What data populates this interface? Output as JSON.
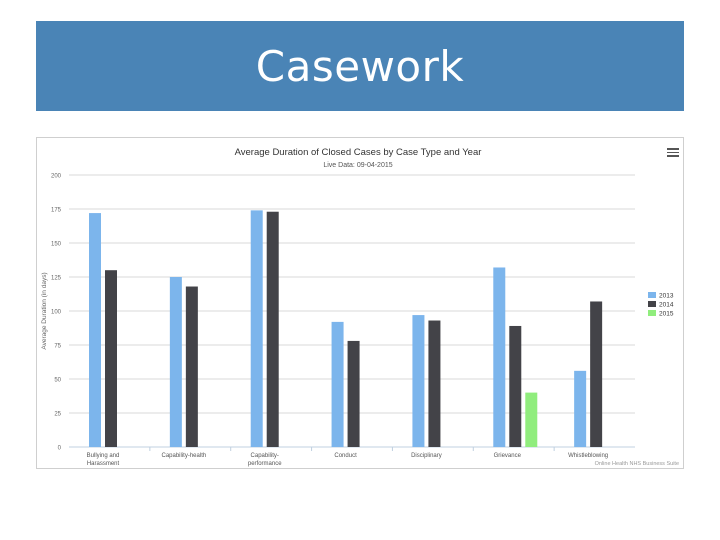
{
  "slide": {
    "title": "Casework"
  },
  "chart_data": {
    "type": "bar",
    "title": "Average Duration of Closed Cases by Case Type and Year",
    "subtitle": "Live Data: 09-04-2015",
    "ylabel": "Average Duration (in days)",
    "xlabel": "",
    "ylim": [
      0,
      200
    ],
    "yticks": [
      0,
      25,
      50,
      75,
      100,
      125,
      150,
      175,
      200
    ],
    "categories": [
      "Bullying and Harassment",
      "Capability-health",
      "Capability-performance",
      "Conduct",
      "Disciplinary",
      "Grievance",
      "Whistleblowing"
    ],
    "series": [
      {
        "name": "2013",
        "color": "#7cb5ec",
        "values": [
          172,
          125,
          174,
          92,
          97,
          132,
          56
        ]
      },
      {
        "name": "2014",
        "color": "#434348",
        "values": [
          130,
          118,
          173,
          78,
          93,
          89,
          107
        ]
      },
      {
        "name": "2015",
        "color": "#90ed7d",
        "values": [
          null,
          null,
          null,
          null,
          null,
          40,
          null
        ]
      }
    ],
    "grid": true,
    "legend_position": "right",
    "credits": "Online Health NHS Business Suite"
  }
}
